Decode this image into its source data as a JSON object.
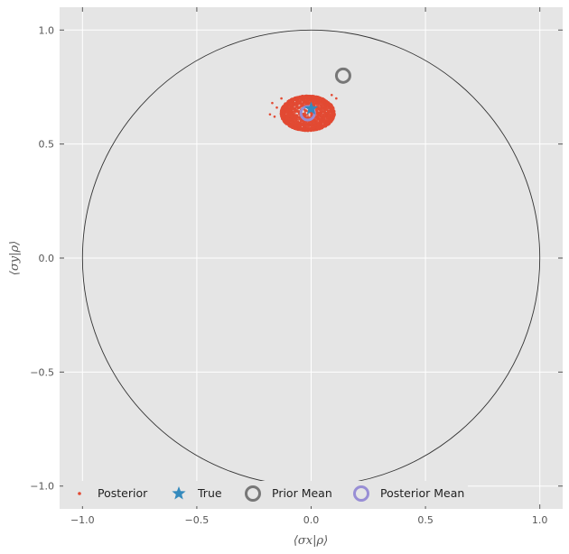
{
  "chart_data": {
    "type": "scatter",
    "xlabel": "⟨σx|ρ⟩",
    "ylabel": "⟨σy|ρ⟩",
    "xlim": [
      -1.1,
      1.1
    ],
    "ylim": [
      -1.1,
      1.1
    ],
    "xticks": [
      -1.0,
      -0.5,
      0.0,
      0.5,
      1.0
    ],
    "yticks": [
      -1.0,
      -0.5,
      0.0,
      0.5,
      1.0
    ],
    "tick_labels_x": [
      "−1.0",
      "−0.5",
      "0.0",
      "0.5",
      "1.0"
    ],
    "tick_labels_y": [
      "−1.0",
      "−0.5",
      "0.0",
      "0.5",
      "1.0"
    ],
    "grid": true,
    "unit_circle": {
      "center": [
        0,
        0
      ],
      "radius": 1.0,
      "color": "#333333"
    },
    "legend_placement": "lower-center",
    "series": [
      {
        "name": "Posterior",
        "marker": "dot",
        "color": "#E24A33",
        "cloud": {
          "center": [
            -0.015,
            0.635
          ],
          "rx": 0.115,
          "ry": 0.075
        },
        "outliers": [
          [
            -0.17,
            0.68
          ],
          [
            -0.18,
            0.63
          ],
          [
            -0.15,
            0.66
          ],
          [
            -0.13,
            0.7
          ],
          [
            0.09,
            0.715
          ],
          [
            0.11,
            0.7
          ],
          [
            0.1,
            0.62
          ],
          [
            -0.16,
            0.62
          ],
          [
            0.07,
            0.59
          ]
        ]
      },
      {
        "name": "True",
        "marker": "star",
        "color": "#348ABD",
        "x": [
          0.0
        ],
        "y": [
          0.655
        ]
      },
      {
        "name": "Prior Mean",
        "marker": "ring",
        "color": "#777777",
        "x": [
          0.14
        ],
        "y": [
          0.8
        ]
      },
      {
        "name": "Posterior Mean",
        "marker": "ring",
        "color": "#988ED5",
        "x": [
          -0.015
        ],
        "y": [
          0.635
        ]
      }
    ]
  }
}
